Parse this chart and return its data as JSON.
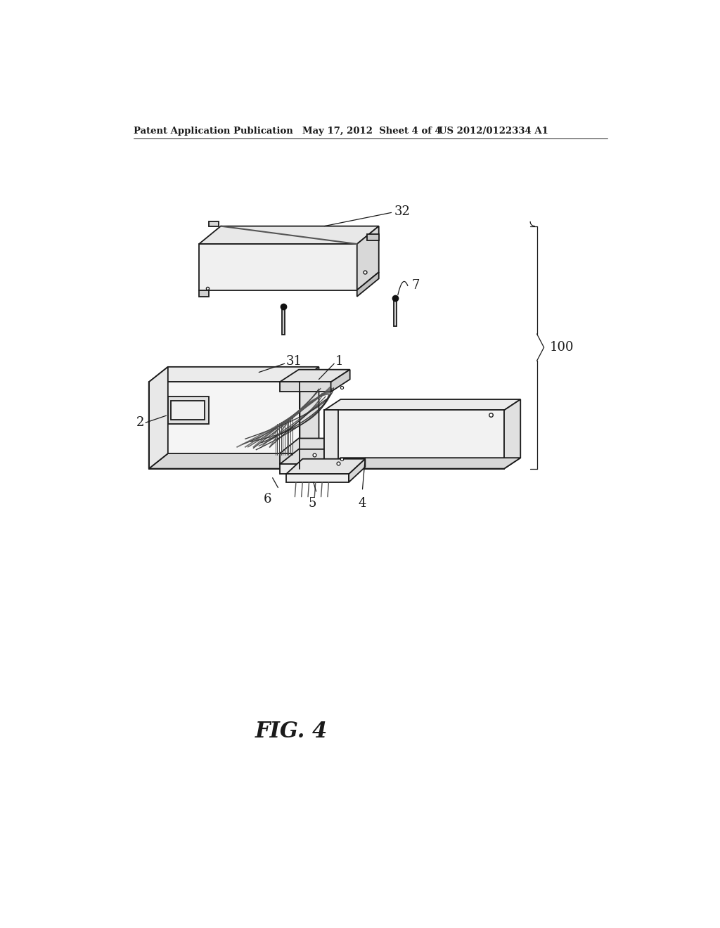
{
  "background_color": "#ffffff",
  "header_left": "Patent Application Publication",
  "header_mid": "May 17, 2012  Sheet 4 of 4",
  "header_right": "US 2012/0122334 A1",
  "fig_label": "FIG. 4",
  "label_100": "100",
  "label_32": "32",
  "label_7": "7",
  "label_31": "31",
  "label_1": "1",
  "label_2": "2",
  "label_6": "6",
  "label_5": "5",
  "label_4": "4",
  "line_color": "#1a1a1a",
  "face_top": "#efefef",
  "face_front": "#e0e0e0",
  "face_right": "#d0d0d0",
  "face_white": "#f8f8f8"
}
